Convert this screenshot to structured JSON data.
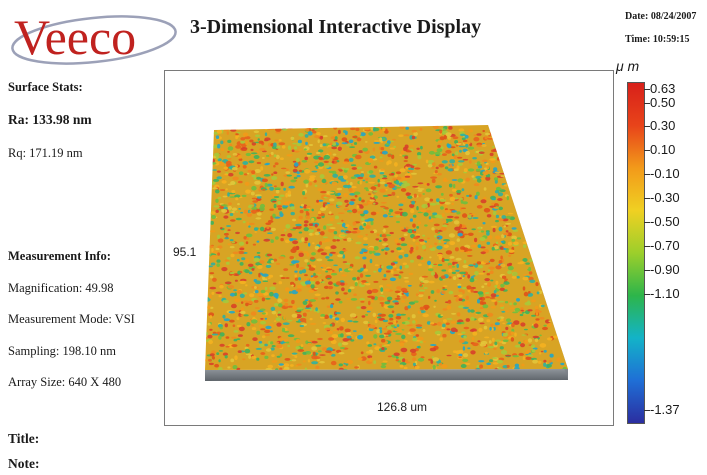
{
  "header": {
    "logo_text": "Veeco",
    "title": "3-Dimensional Interactive Display",
    "date_text": "Date: 08/24/2007",
    "time_text": "Time: 10:59:15"
  },
  "surface_stats": {
    "heading": "Surface Stats:",
    "ra": "Ra: 133.98 nm",
    "rq": "Rq: 171.19 nm"
  },
  "measurement_info": {
    "heading": "Measurement Info:",
    "magnification": "Magnification: 49.98",
    "mode": "Measurement Mode: VSI",
    "sampling": "Sampling: 198.10 nm",
    "array_size": "Array Size: 640 X 480"
  },
  "plot": {
    "y_extent_label": "95.1",
    "x_extent_label": "126.8 um"
  },
  "colorbar": {
    "unit": "μ m",
    "ticks": [
      "0.63",
      "0.50",
      "0.30",
      "0.10",
      "-0.10",
      "-0.30",
      "-0.50",
      "-0.70",
      "-0.90",
      "-1.10",
      "-1.37"
    ],
    "colors": [
      "#2b2ea0",
      "#1f6fd6",
      "#13b3c8",
      "#2db54a",
      "#9ccf2b",
      "#f0d022",
      "#f29a1a",
      "#e8441a",
      "#d8201a"
    ]
  },
  "footer": {
    "title_label": "Title:",
    "note_label": "Note:"
  }
}
